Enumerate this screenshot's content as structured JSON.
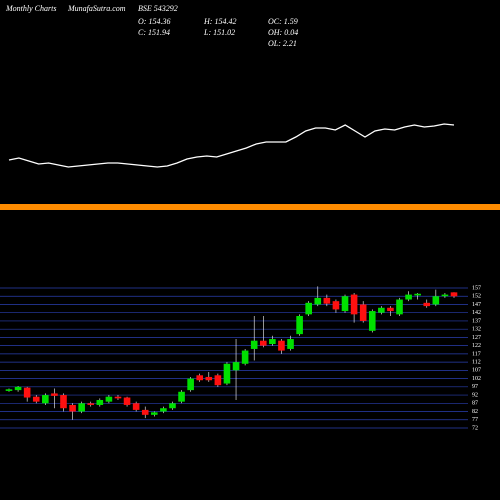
{
  "header": {
    "label": "Monthly Charts",
    "site": "MunafaSutra.com",
    "symbol": "BSE 543292",
    "stats": [
      "O: 154.36",
      "H: 154.42",
      "OC: 1.59",
      "C: 151.94",
      "L: 151.02",
      "OH: 0.04",
      "OL: 2.21"
    ]
  },
  "chart_data": [
    {
      "type": "line",
      "color": "#ffffff",
      "ylim": [
        0,
        70
      ],
      "values": [
        20,
        22,
        19,
        16,
        17,
        15,
        13,
        14,
        15,
        16,
        17,
        17,
        16,
        15,
        14,
        13,
        14,
        17,
        21,
        23,
        24,
        23,
        26,
        29,
        32,
        36,
        38,
        38,
        38,
        43,
        49,
        52,
        52,
        50,
        55,
        49,
        43,
        49,
        51,
        50,
        53,
        55,
        53,
        54,
        56,
        55
      ]
    },
    {
      "type": "candlestick",
      "up_color": "#00e000",
      "down_color": "#ff1010",
      "grid": true,
      "ylim": [
        72,
        157
      ],
      "yticks": [
        157,
        152,
        147,
        142,
        137,
        132,
        127,
        122,
        117,
        112,
        107,
        102,
        97,
        92,
        87,
        82,
        77,
        72
      ],
      "open": [
        94.5,
        95,
        96.5,
        91,
        87,
        93,
        92,
        86,
        82,
        87,
        86,
        88,
        91,
        90.5,
        87,
        83,
        80,
        82,
        84,
        88,
        95,
        104,
        103,
        104,
        99,
        107,
        111,
        120,
        125,
        123,
        125,
        120,
        129,
        141,
        147,
        151,
        149,
        143,
        153,
        147,
        131,
        142,
        145,
        141,
        150,
        152.5,
        148,
        147,
        152,
        154.36
      ],
      "high": [
        96,
        97.5,
        97,
        92,
        93,
        96,
        93,
        87,
        88,
        88,
        90,
        92,
        92,
        91,
        88,
        85,
        82,
        85,
        88,
        95,
        103,
        105,
        106,
        105,
        112,
        126,
        120,
        140,
        140,
        128,
        126,
        128,
        141,
        149,
        158,
        153,
        150,
        153,
        154,
        149,
        144,
        146,
        146,
        151,
        155,
        154,
        150,
        156,
        154,
        154.42
      ],
      "low": [
        94,
        94,
        88,
        87,
        86,
        84,
        82,
        77,
        81,
        85,
        85,
        87,
        89,
        85,
        82,
        78,
        79,
        81,
        83,
        87,
        94,
        100,
        100,
        97,
        98,
        89,
        110,
        113,
        121,
        122,
        117,
        119,
        128,
        140,
        146,
        146,
        142,
        142,
        136,
        136,
        130,
        141,
        140,
        140,
        149,
        150,
        145,
        146,
        151,
        151.02
      ],
      "close": [
        95.5,
        97,
        90.5,
        88,
        92,
        91.5,
        84,
        82,
        87,
        86,
        89,
        91,
        90,
        86,
        83,
        80,
        81.5,
        84,
        87,
        94,
        102,
        101,
        101,
        98,
        111,
        112,
        119,
        125,
        122,
        126,
        119,
        126,
        140,
        148,
        151,
        147.5,
        144,
        152,
        141,
        137,
        143,
        145,
        143,
        150,
        153,
        153.5,
        146,
        152,
        153,
        151.94
      ]
    }
  ]
}
